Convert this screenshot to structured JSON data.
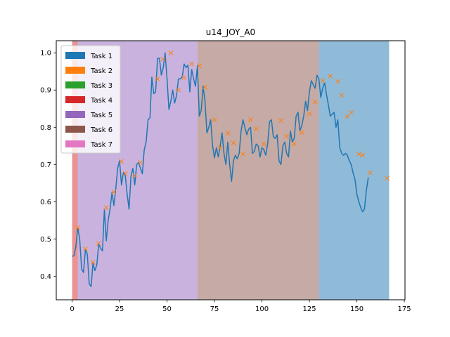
{
  "chart_data": {
    "type": "line",
    "title": "u14_JOY_A0",
    "xlabel": "",
    "ylabel": "",
    "xlim": [
      -8.35,
      175.35
    ],
    "ylim": [
      0.3365,
      1.0325
    ],
    "xticks": [
      0,
      25,
      50,
      75,
      100,
      125,
      150,
      175
    ],
    "yticks": [
      0.4,
      0.5,
      0.6,
      0.7,
      0.8,
      0.9,
      1.0
    ],
    "xtick_labels": [
      "0",
      "25",
      "50",
      "75",
      "100",
      "125",
      "150",
      "175"
    ],
    "ytick_labels": [
      "0.4",
      "0.5",
      "0.6",
      "0.7",
      "0.8",
      "0.9",
      "1.0"
    ],
    "grid": false,
    "legend_position": "top-left",
    "legend": [
      {
        "name": "Task 1",
        "color": "#1f77b4"
      },
      {
        "name": "Task 2",
        "color": "#ff7f0e"
      },
      {
        "name": "Task 3",
        "color": "#2ca02c"
      },
      {
        "name": "Task 4",
        "color": "#d62728"
      },
      {
        "name": "Task 5",
        "color": "#9467bd"
      },
      {
        "name": "Task 6",
        "color": "#8c564b"
      },
      {
        "name": "Task 7",
        "color": "#e377c2"
      }
    ],
    "task_spans": [
      {
        "task": "Task 4",
        "x_start": 0,
        "x_end": 3,
        "color": "#d62728",
        "alpha": 0.5
      },
      {
        "task": "Task 5",
        "x_start": 3,
        "x_end": 66,
        "color": "#9467bd",
        "alpha": 0.5
      },
      {
        "task": "Task 6",
        "x_start": 66,
        "x_end": 130,
        "color": "#8c564b",
        "alpha": 0.5
      },
      {
        "task": "Task 1",
        "x_start": 130,
        "x_end": 167,
        "color": "#1f77b4",
        "alpha": 0.5
      }
    ],
    "line": {
      "color": "#1f77b4",
      "points": [
        [
          0,
          0.453
        ],
        [
          1,
          0.455
        ],
        [
          2,
          0.48
        ],
        [
          3,
          0.53
        ],
        [
          4,
          0.5
        ],
        [
          5,
          0.42
        ],
        [
          6,
          0.41
        ],
        [
          7,
          0.47
        ],
        [
          8,
          0.46
        ],
        [
          9,
          0.38
        ],
        [
          10,
          0.372
        ],
        [
          11,
          0.435
        ],
        [
          12,
          0.415
        ],
        [
          13,
          0.43
        ],
        [
          14,
          0.485
        ],
        [
          15,
          0.475
        ],
        [
          16,
          0.468
        ],
        [
          17,
          0.58
        ],
        [
          18,
          0.495
        ],
        [
          19,
          0.55
        ],
        [
          20,
          0.58
        ],
        [
          21,
          0.625
        ],
        [
          22,
          0.59
        ],
        [
          23,
          0.635
        ],
        [
          24,
          0.69
        ],
        [
          25,
          0.71
        ],
        [
          26,
          0.645
        ],
        [
          27,
          0.678
        ],
        [
          28,
          0.67
        ],
        [
          29,
          0.62
        ],
        [
          30,
          0.58
        ],
        [
          31,
          0.668
        ],
        [
          32,
          0.69
        ],
        [
          33,
          0.645
        ],
        [
          34,
          0.7
        ],
        [
          35,
          0.705
        ],
        [
          36,
          0.69
        ],
        [
          37,
          0.675
        ],
        [
          38,
          0.74
        ],
        [
          39,
          0.76
        ],
        [
          40,
          0.82
        ],
        [
          41,
          0.825
        ],
        [
          42,
          0.935
        ],
        [
          43,
          0.89
        ],
        [
          44,
          0.895
        ],
        [
          45,
          0.985
        ],
        [
          46,
          0.985
        ],
        [
          47,
          0.94
        ],
        [
          48,
          0.96
        ],
        [
          49,
          1.0
        ],
        [
          50,
          0.93
        ],
        [
          51,
          0.848
        ],
        [
          52,
          0.87
        ],
        [
          53,
          0.9
        ],
        [
          54,
          0.865
        ],
        [
          55,
          0.885
        ],
        [
          56,
          0.93
        ],
        [
          57,
          0.93
        ],
        [
          58,
          0.935
        ],
        [
          59,
          0.97
        ],
        [
          60,
          0.96
        ],
        [
          61,
          0.967
        ],
        [
          62,
          0.895
        ],
        [
          63,
          0.955
        ],
        [
          64,
          0.93
        ],
        [
          65,
          0.91
        ],
        [
          66,
          0.965
        ],
        [
          67,
          0.83
        ],
        [
          68,
          0.845
        ],
        [
          69,
          0.91
        ],
        [
          70,
          0.87
        ],
        [
          71,
          0.785
        ],
        [
          72,
          0.8
        ],
        [
          73,
          0.82
        ],
        [
          74,
          0.75
        ],
        [
          75,
          0.718
        ],
        [
          76,
          0.745
        ],
        [
          77,
          0.72
        ],
        [
          78,
          0.75
        ],
        [
          79,
          0.785
        ],
        [
          80,
          0.73
        ],
        [
          81,
          0.7
        ],
        [
          82,
          0.76
        ],
        [
          83,
          0.7
        ],
        [
          84,
          0.655
        ],
        [
          85,
          0.71
        ],
        [
          86,
          0.725
        ],
        [
          87,
          0.715
        ],
        [
          88,
          0.73
        ],
        [
          89,
          0.79
        ],
        [
          90,
          0.82
        ],
        [
          91,
          0.8
        ],
        [
          92,
          0.78
        ],
        [
          93,
          0.795
        ],
        [
          94,
          0.8
        ],
        [
          95,
          0.73
        ],
        [
          96,
          0.735
        ],
        [
          97,
          0.755
        ],
        [
          98,
          0.75
        ],
        [
          99,
          0.72
        ],
        [
          100,
          0.745
        ],
        [
          101,
          0.74
        ],
        [
          102,
          0.725
        ],
        [
          103,
          0.755
        ],
        [
          104,
          0.815
        ],
        [
          105,
          0.82
        ],
        [
          106,
          0.775
        ],
        [
          107,
          0.77
        ],
        [
          108,
          0.78
        ],
        [
          109,
          0.71
        ],
        [
          110,
          0.7
        ],
        [
          111,
          0.75
        ],
        [
          112,
          0.76
        ],
        [
          113,
          0.73
        ],
        [
          114,
          0.72
        ],
        [
          115,
          0.79
        ],
        [
          116,
          0.76
        ],
        [
          117,
          0.77
        ],
        [
          118,
          0.83
        ],
        [
          119,
          0.84
        ],
        [
          120,
          0.79
        ],
        [
          121,
          0.805
        ],
        [
          122,
          0.83
        ],
        [
          123,
          0.87
        ],
        [
          124,
          0.845
        ],
        [
          125,
          0.895
        ],
        [
          126,
          0.925
        ],
        [
          127,
          0.915
        ],
        [
          128,
          0.905
        ],
        [
          129,
          0.94
        ],
        [
          130,
          0.93
        ],
        [
          131,
          0.88
        ],
        [
          132,
          0.905
        ],
        [
          133,
          0.92
        ],
        [
          134,
          0.888
        ],
        [
          135,
          0.86
        ],
        [
          136,
          0.83
        ],
        [
          137,
          0.835
        ],
        [
          138,
          0.84
        ],
        [
          139,
          0.8
        ],
        [
          140,
          0.82
        ],
        [
          141,
          0.745
        ],
        [
          142,
          0.73
        ],
        [
          143,
          0.725
        ],
        [
          144,
          0.73
        ],
        [
          145,
          0.725
        ],
        [
          146,
          0.71
        ],
        [
          147,
          0.7
        ],
        [
          148,
          0.678
        ],
        [
          149,
          0.66
        ],
        [
          150,
          0.62
        ],
        [
          151,
          0.6
        ],
        [
          152,
          0.585
        ],
        [
          153,
          0.573
        ],
        [
          154,
          0.58
        ],
        [
          155,
          0.63
        ],
        [
          156,
          0.665
        ]
      ]
    },
    "markers": {
      "color": "#ff7f0e",
      "symbol": "x",
      "points": [
        [
          3,
          0.53
        ],
        [
          7,
          0.473
        ],
        [
          11,
          0.437
        ],
        [
          14,
          0.488
        ],
        [
          18,
          0.584
        ],
        [
          22,
          0.626
        ],
        [
          26,
          0.708
        ],
        [
          28,
          0.676
        ],
        [
          33,
          0.67
        ],
        [
          36,
          0.705
        ],
        [
          45,
          0.93
        ],
        [
          48,
          0.983
        ],
        [
          52,
          1.0
        ],
        [
          56,
          0.9
        ],
        [
          59,
          0.933
        ],
        [
          63,
          0.97
        ],
        [
          67,
          0.965
        ],
        [
          70,
          0.908
        ],
        [
          75,
          0.82
        ],
        [
          78,
          0.745
        ],
        [
          82,
          0.784
        ],
        [
          85,
          0.758
        ],
        [
          90,
          0.728
        ],
        [
          94,
          0.82
        ],
        [
          97,
          0.796
        ],
        [
          101,
          0.755
        ],
        [
          110,
          0.818
        ],
        [
          113,
          0.776
        ],
        [
          117,
          0.755
        ],
        [
          121,
          0.786
        ],
        [
          125,
          0.836
        ],
        [
          128,
          0.868
        ],
        [
          132,
          0.925
        ],
        [
          136,
          0.937
        ],
        [
          140,
          0.923
        ],
        [
          142,
          0.886
        ],
        [
          145,
          0.829
        ],
        [
          147,
          0.84
        ],
        [
          151,
          0.728
        ],
        [
          153,
          0.725
        ],
        [
          157,
          0.678
        ],
        [
          166,
          0.663
        ]
      ]
    }
  }
}
